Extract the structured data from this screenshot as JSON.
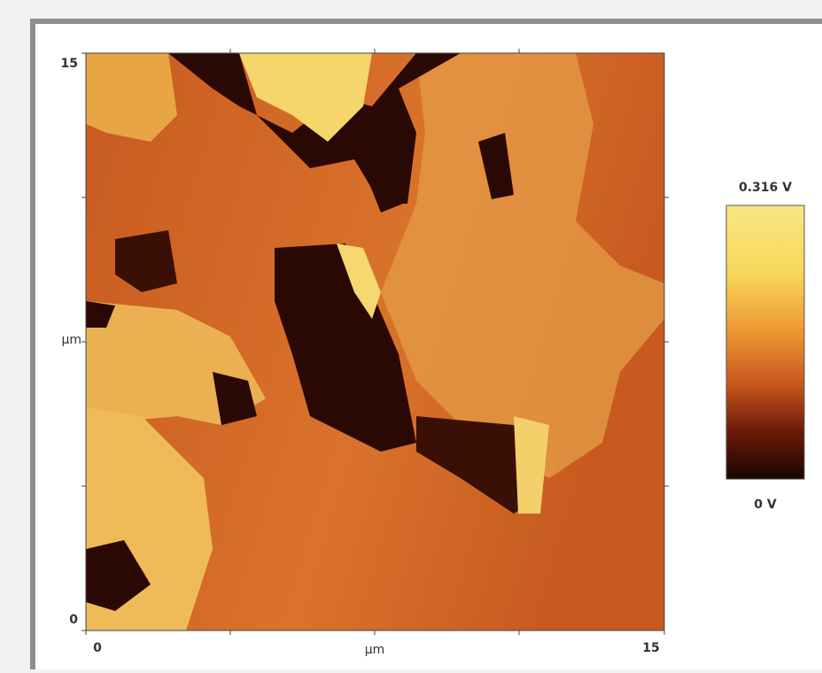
{
  "y_axis": {
    "top_label": "15",
    "middle_label": "µm",
    "bottom_label": "0"
  },
  "x_axis": {
    "left_label": "0",
    "middle_label": "µm",
    "right_label": "15"
  },
  "colorbar": {
    "max_label": "0.316 V",
    "min_label": "0 V"
  }
}
